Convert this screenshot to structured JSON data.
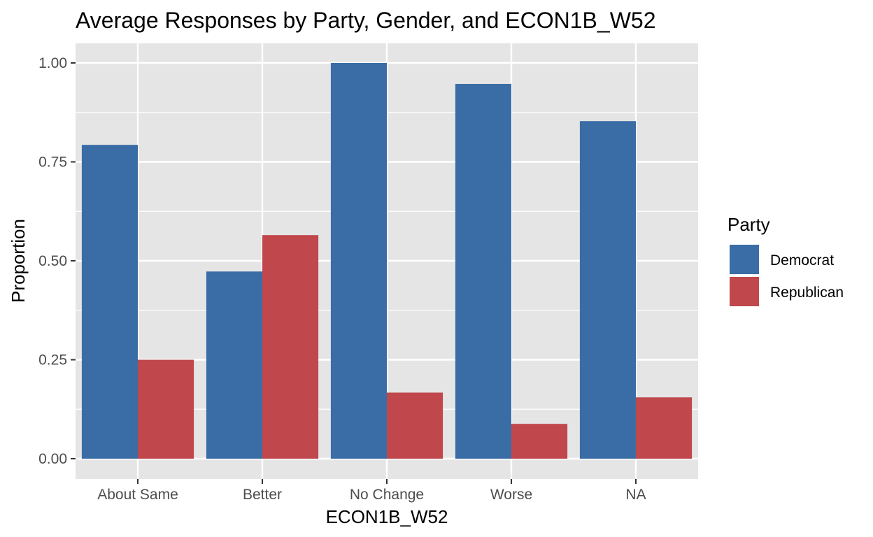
{
  "chart_data": {
    "type": "bar",
    "title": "Average Responses by Party, Gender, and ECON1B_W52",
    "xlabel": "ECON1B_W52",
    "ylabel": "Proportion",
    "categories": [
      "About Same",
      "Better",
      "No Change",
      "Worse",
      "NA"
    ],
    "series": [
      {
        "name": "Democrat",
        "values": [
          0.793,
          0.473,
          1.0,
          0.947,
          0.853
        ]
      },
      {
        "name": "Republican",
        "values": [
          0.25,
          0.565,
          0.167,
          0.088,
          0.155
        ]
      }
    ],
    "ylim": [
      0,
      1.0
    ],
    "yticks": [
      0.0,
      0.25,
      0.5,
      0.75,
      1.0
    ],
    "ytick_labels": [
      "0.00",
      "0.25",
      "0.50",
      "0.75",
      "1.00"
    ],
    "grid": true,
    "legend": {
      "title": "Party",
      "position": "right"
    },
    "colors": {
      "Democrat": "#3a6da6",
      "Republican": "#c0474b",
      "panel_background": "#e5e5e5",
      "grid": "#ffffff"
    }
  }
}
